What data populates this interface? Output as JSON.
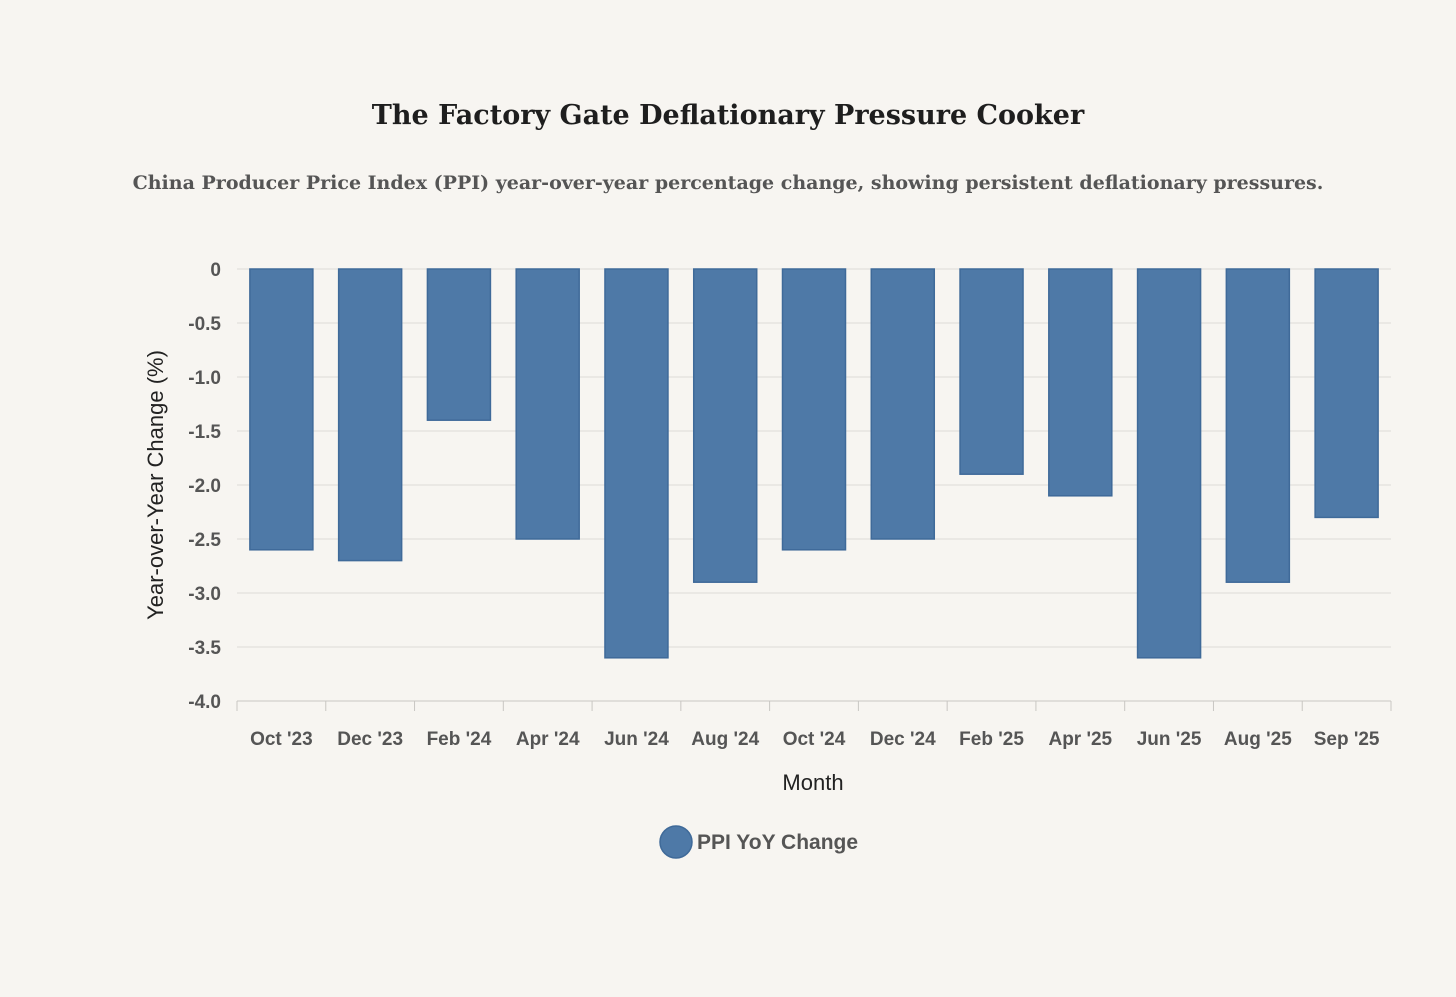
{
  "colors": {
    "background": "#f7f5f1",
    "bar": "#4e79a7",
    "bar_border": "#3f6a99",
    "grid": "#dedcd8",
    "axis": "#c8c6c2"
  },
  "chart_data": {
    "type": "bar",
    "title": "The Factory Gate Deflationary Pressure Cooker",
    "subtitle": "China Producer Price Index (PPI) year-over-year percentage change, showing persistent deflationary pressures.",
    "xlabel": "Month",
    "ylabel": "Year-over-Year Change (%)",
    "ylim": [
      -4.0,
      0
    ],
    "yticks": [
      "0",
      "-0.5",
      "-1.0",
      "-1.5",
      "-2.0",
      "-2.5",
      "-3.0",
      "-3.5",
      "-4.0"
    ],
    "ytick_values": [
      0,
      -0.5,
      -1.0,
      -1.5,
      -2.0,
      -2.5,
      -3.0,
      -3.5,
      -4.0
    ],
    "grid": true,
    "legend_position": "bottom-center",
    "categories": [
      "Oct '23",
      "Dec '23",
      "Feb '24",
      "Apr '24",
      "Jun '24",
      "Aug '24",
      "Oct '24",
      "Dec '24",
      "Feb '25",
      "Apr '25",
      "Jun '25",
      "Aug '25",
      "Sep '25"
    ],
    "series": [
      {
        "name": "PPI YoY Change",
        "values": [
          -2.6,
          -2.7,
          -1.4,
          -2.5,
          -3.6,
          -2.9,
          -2.6,
          -2.5,
          -1.9,
          -2.1,
          -3.6,
          -2.9,
          -2.3
        ]
      }
    ]
  }
}
